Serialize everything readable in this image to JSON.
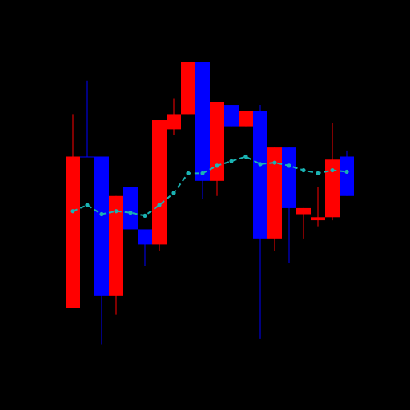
{
  "chart_data": {
    "type": "candlestick",
    "background": "#000000",
    "up_color": "#0000ff",
    "down_color": "#ff0000",
    "line_color": "#1ab3b3",
    "line_style": "dashed",
    "ylim": [
      0,
      100
    ],
    "grid": false,
    "legend": "none",
    "candles": [
      {
        "open": 60,
        "close": 10,
        "high": 74,
        "low": 10
      },
      {
        "open": 60,
        "close": 60,
        "high": 85,
        "low": 60
      },
      {
        "open": 14,
        "close": 60,
        "high": 60,
        "low": -2
      },
      {
        "open": 47,
        "close": 14,
        "high": 47,
        "low": 8
      },
      {
        "open": 36,
        "close": 50,
        "high": 50,
        "low": 36
      },
      {
        "open": 31,
        "close": 36,
        "high": 36,
        "low": 24
      },
      {
        "open": 72,
        "close": 31,
        "high": 72,
        "low": 29
      },
      {
        "open": 74,
        "close": 69,
        "high": 79,
        "low": 67
      },
      {
        "open": 91,
        "close": 74,
        "high": 91,
        "low": 74
      },
      {
        "open": 52,
        "close": 91,
        "high": 91,
        "low": 46
      },
      {
        "open": 78,
        "close": 52,
        "high": 78,
        "low": 47
      },
      {
        "open": 70,
        "close": 77,
        "high": 77,
        "low": 70
      },
      {
        "open": 75,
        "close": 70,
        "high": 75,
        "low": 70
      },
      {
        "open": 33,
        "close": 75,
        "high": 77,
        "low": 0
      },
      {
        "open": 63,
        "close": 33,
        "high": 63,
        "low": 29
      },
      {
        "open": 43,
        "close": 63,
        "high": 63,
        "low": 25
      },
      {
        "open": 43,
        "close": 41,
        "high": 43,
        "low": 33
      },
      {
        "open": 40,
        "close": 39,
        "high": 50,
        "low": 37
      },
      {
        "open": 59,
        "close": 40,
        "high": 71,
        "low": 39
      },
      {
        "open": 47,
        "close": 60,
        "high": 62,
        "low": 47
      }
    ],
    "moving_average": [
      {
        "index": 0,
        "value": 42
      },
      {
        "index": 1,
        "value": 44
      },
      {
        "index": 2,
        "value": 41
      },
      {
        "index": 3,
        "value": 42
      },
      {
        "index": 4,
        "value": 41.5
      },
      {
        "index": 5,
        "value": 40.5
      },
      {
        "index": 6,
        "value": 44
      },
      {
        "index": 7,
        "value": 48
      },
      {
        "index": 8,
        "value": 54.5
      },
      {
        "index": 9,
        "value": 54.5
      },
      {
        "index": 10,
        "value": 57
      },
      {
        "index": 11,
        "value": 58.5
      },
      {
        "index": 12,
        "value": 60
      },
      {
        "index": 13,
        "value": 57.5
      },
      {
        "index": 14,
        "value": 58
      },
      {
        "index": 15,
        "value": 57
      },
      {
        "index": 16,
        "value": 55.5
      },
      {
        "index": 17,
        "value": 54.5
      },
      {
        "index": 18,
        "value": 55.5
      },
      {
        "index": 19,
        "value": 55
      }
    ]
  }
}
